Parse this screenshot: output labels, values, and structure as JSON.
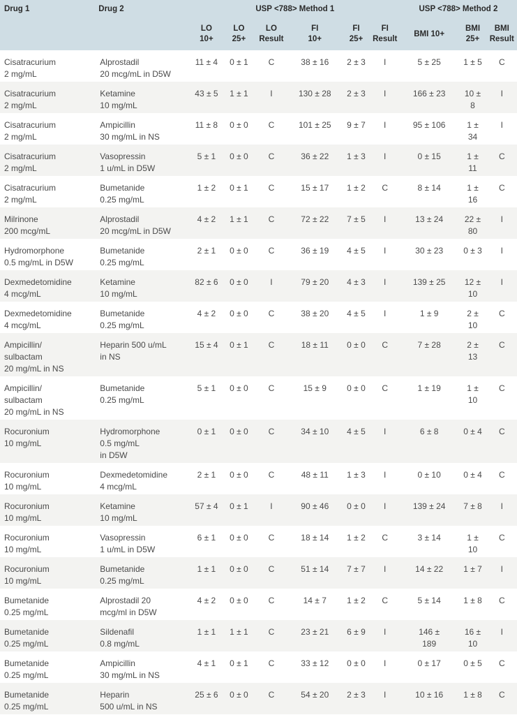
{
  "header": {
    "drug1": "Drug 1",
    "drug2": "Drug 2",
    "method1": "USP <788> Method 1",
    "method2": "USP <788> Method 2",
    "lo10": [
      "LO",
      "10+"
    ],
    "lo25": [
      "LO",
      "25+"
    ],
    "lo_result": [
      "LO",
      "Result"
    ],
    "fi10": [
      "FI",
      "10+"
    ],
    "fi25": [
      "FI",
      "25+"
    ],
    "fi_result": [
      "FI",
      "Result"
    ],
    "bmi10": [
      "BMI 10+"
    ],
    "bmi25": [
      "BMI",
      "25+"
    ],
    "bmi_result": [
      "BMI",
      "Result"
    ]
  },
  "rows": [
    {
      "d1": [
        "Cisatracurium",
        "2 mg/mL"
      ],
      "d2": [
        "Alprostadil",
        "20 mcg/mL in D5W"
      ],
      "lo10": [
        "11 ± 4"
      ],
      "lo25": [
        "0 ± 1"
      ],
      "lor": "C",
      "fi10": [
        "38 ± 16"
      ],
      "fi25": [
        "2 ± 3"
      ],
      "fir": "I",
      "bmi10": [
        "5 ± 25"
      ],
      "bmi25": [
        "1 ± 5"
      ],
      "bmir": "C"
    },
    {
      "d1": [
        "Cisatracurium",
        "2 mg/mL"
      ],
      "d2": [
        "Ketamine",
        "10 mg/mL"
      ],
      "lo10": [
        "43 ± 5"
      ],
      "lo25": [
        "1 ± 1"
      ],
      "lor": "I",
      "fi10": [
        "130 ± 28"
      ],
      "fi25": [
        "2 ± 3"
      ],
      "fir": "I",
      "bmi10": [
        "166 ± 23"
      ],
      "bmi25": [
        "10 ± 8"
      ],
      "bmir": "I"
    },
    {
      "d1": [
        "Cisatracurium",
        "2 mg/mL"
      ],
      "d2": [
        "Ampicillin",
        "30 mg/mL in NS"
      ],
      "lo10": [
        "11 ± 8"
      ],
      "lo25": [
        "0 ± 0"
      ],
      "lor": "C",
      "fi10": [
        "101 ± 25"
      ],
      "fi25": [
        "9 ± 7"
      ],
      "fir": "I",
      "bmi10": [
        "95 ± 106"
      ],
      "bmi25": [
        "1 ± 34"
      ],
      "bmir": "I"
    },
    {
      "d1": [
        "Cisatracurium",
        "2 mg/mL"
      ],
      "d2": [
        "Vasopressin",
        "1 u/mL in D5W"
      ],
      "lo10": [
        "5 ± 1"
      ],
      "lo25": [
        "0 ± 0"
      ],
      "lor": "C",
      "fi10": [
        "36 ± 22"
      ],
      "fi25": [
        "1 ± 3"
      ],
      "fir": "I",
      "bmi10": [
        "0 ± 15"
      ],
      "bmi25": [
        "1 ± 11"
      ],
      "bmir": "C"
    },
    {
      "d1": [
        "Cisatracurium",
        "2 mg/mL"
      ],
      "d2": [
        "Bumetanide",
        "0.25 mg/mL"
      ],
      "lo10": [
        "1 ± 2"
      ],
      "lo25": [
        "0 ± 1"
      ],
      "lor": "C",
      "fi10": [
        "15 ± 17"
      ],
      "fi25": [
        "1 ± 2"
      ],
      "fir": "C",
      "bmi10": [
        "8 ± 14"
      ],
      "bmi25": [
        "1 ± 16"
      ],
      "bmir": "C"
    },
    {
      "d1": [
        "Milrinone",
        "200 mcg/mL"
      ],
      "d2": [
        "Alprostadil",
        "20 mcg/mL in D5W"
      ],
      "lo10": [
        "4 ± 2"
      ],
      "lo25": [
        "1 ± 1"
      ],
      "lor": "C",
      "fi10": [
        "72 ± 22"
      ],
      "fi25": [
        "7 ± 5"
      ],
      "fir": "I",
      "bmi10": [
        "13 ± 24"
      ],
      "bmi25": [
        "22 ±",
        "80"
      ],
      "bmir": "I"
    },
    {
      "d1": [
        "Hydromorphone",
        "0.5 mg/mL in D5W"
      ],
      "d2": [
        "Bumetanide",
        "0.25 mg/mL"
      ],
      "lo10": [
        "2 ± 1"
      ],
      "lo25": [
        "0 ± 0"
      ],
      "lor": "C",
      "fi10": [
        "36 ± 19"
      ],
      "fi25": [
        "4 ± 5"
      ],
      "fir": "I",
      "bmi10": [
        "30 ± 23"
      ],
      "bmi25": [
        "0 ± 3"
      ],
      "bmir": "I"
    },
    {
      "d1": [
        "Dexmedetomidine",
        "4 mcg/mL"
      ],
      "d2": [
        "Ketamine",
        "10 mg/mL"
      ],
      "lo10": [
        "82 ± 6"
      ],
      "lo25": [
        "0 ± 0"
      ],
      "lor": "I",
      "fi10": [
        "79 ± 20"
      ],
      "fi25": [
        "4 ± 3"
      ],
      "fir": "I",
      "bmi10": [
        "139 ± 25"
      ],
      "bmi25": [
        "12 ± 10"
      ],
      "bmir": "I"
    },
    {
      "d1": [
        "Dexmedetomidine",
        "4 mcg/mL"
      ],
      "d2": [
        "Bumetanide",
        "0.25 mg/mL"
      ],
      "lo10": [
        "4 ± 2"
      ],
      "lo25": [
        "0 ± 0"
      ],
      "lor": "C",
      "fi10": [
        "38 ± 20"
      ],
      "fi25": [
        "4 ± 5"
      ],
      "fir": "I",
      "bmi10": [
        "1 ± 9"
      ],
      "bmi25": [
        "2 ± 10"
      ],
      "bmir": "C"
    },
    {
      "d1": [
        "Ampicillin/",
        "sulbactam",
        "20 mg/mL in NS"
      ],
      "d2": [
        "Heparin 500 u/mL",
        "in NS"
      ],
      "lo10": [
        "15 ± 4"
      ],
      "lo25": [
        "0 ± 1"
      ],
      "lor": "C",
      "fi10": [
        "18 ± 11"
      ],
      "fi25": [
        "0 ± 0"
      ],
      "fir": "C",
      "bmi10": [
        "7 ± 28"
      ],
      "bmi25": [
        "2 ± 13"
      ],
      "bmir": "C"
    },
    {
      "d1": [
        "Ampicillin/",
        "sulbactam",
        "20 mg/mL in NS"
      ],
      "d2": [
        "Bumetanide",
        "0.25 mg/mL"
      ],
      "lo10": [
        "5 ± 1"
      ],
      "lo25": [
        "0 ± 0"
      ],
      "lor": "C",
      "fi10": [
        "15 ± 9"
      ],
      "fi25": [
        "0 ± 0"
      ],
      "fir": "C",
      "bmi10": [
        "1 ± 19"
      ],
      "bmi25": [
        "1 ± 10"
      ],
      "bmir": "C"
    },
    {
      "d1": [
        "Rocuronium",
        "10 mg/mL"
      ],
      "d2": [
        "Hydromorphone",
        "0.5 mg/mL",
        "in D5W"
      ],
      "lo10": [
        "0 ± 1"
      ],
      "lo25": [
        "0 ± 0"
      ],
      "lor": "C",
      "fi10": [
        "34 ± 10"
      ],
      "fi25": [
        "4 ± 5"
      ],
      "fir": "I",
      "bmi10": [
        "6 ± 8"
      ],
      "bmi25": [
        "0 ± 4"
      ],
      "bmir": "C"
    },
    {
      "d1": [
        "Rocuronium",
        "10 mg/mL"
      ],
      "d2": [
        "Dexmedetomidine",
        "4 mcg/mL"
      ],
      "lo10": [
        "2 ± 1"
      ],
      "lo25": [
        "0 ± 0"
      ],
      "lor": "C",
      "fi10": [
        "48 ± 11"
      ],
      "fi25": [
        "1 ± 3"
      ],
      "fir": "I",
      "bmi10": [
        "0 ± 10"
      ],
      "bmi25": [
        "0 ± 4"
      ],
      "bmir": "C"
    },
    {
      "d1": [
        "Rocuronium",
        "10 mg/mL"
      ],
      "d2": [
        "Ketamine",
        "10 mg/mL"
      ],
      "lo10": [
        "57 ± 4"
      ],
      "lo25": [
        "0 ± 1"
      ],
      "lor": "I",
      "fi10": [
        "90 ± 46"
      ],
      "fi25": [
        "0 ± 0"
      ],
      "fir": "I",
      "bmi10": [
        "139 ± 24"
      ],
      "bmi25": [
        "7 ± 8"
      ],
      "bmir": "I"
    },
    {
      "d1": [
        "Rocuronium",
        "10 mg/mL"
      ],
      "d2": [
        "Vasopressin",
        "1 u/mL in D5W"
      ],
      "lo10": [
        "6 ± 1"
      ],
      "lo25": [
        "0 ± 0"
      ],
      "lor": "C",
      "fi10": [
        "18 ± 14"
      ],
      "fi25": [
        "1 ± 2"
      ],
      "fir": "C",
      "bmi10": [
        "3 ± 14"
      ],
      "bmi25": [
        "1 ± 10"
      ],
      "bmir": "C"
    },
    {
      "d1": [
        "Rocuronium",
        "10 mg/mL"
      ],
      "d2": [
        "Bumetanide",
        "0.25 mg/mL"
      ],
      "lo10": [
        "1 ± 1"
      ],
      "lo25": [
        "0 ± 0"
      ],
      "lor": "C",
      "fi10": [
        "51 ± 14"
      ],
      "fi25": [
        "7 ± 7"
      ],
      "fir": "I",
      "bmi10": [
        "14 ± 22"
      ],
      "bmi25": [
        "1 ± 7"
      ],
      "bmir": "I"
    },
    {
      "d1": [
        "Bumetanide",
        "0.25 mg/mL"
      ],
      "d2": [
        "Alprostadil 20",
        "mcg/ml in D5W"
      ],
      "lo10": [
        "4 ± 2"
      ],
      "lo25": [
        "0 ± 0"
      ],
      "lor": "C",
      "fi10": [
        "14 ± 7"
      ],
      "fi25": [
        "1 ± 2"
      ],
      "fir": "C",
      "bmi10": [
        "5 ± 14"
      ],
      "bmi25": [
        "1 ± 8"
      ],
      "bmir": "C"
    },
    {
      "d1": [
        "Bumetanide",
        "0.25 mg/mL"
      ],
      "d2": [
        "Sildenafil",
        "0.8 mg/mL"
      ],
      "lo10": [
        "1 ± 1"
      ],
      "lo25": [
        "1 ± 1"
      ],
      "lor": "C",
      "fi10": [
        "23 ± 21"
      ],
      "fi25": [
        "6 ± 9"
      ],
      "fir": "I",
      "bmi10": [
        "146 ±",
        "189"
      ],
      "bmi25": [
        "16 ± 10"
      ],
      "bmir": "I"
    },
    {
      "d1": [
        "Bumetanide",
        "0.25 mg/mL"
      ],
      "d2": [
        "Ampicillin",
        "30 mg/mL in NS"
      ],
      "lo10": [
        "4 ± 1"
      ],
      "lo25": [
        "0 ± 1"
      ],
      "lor": "C",
      "fi10": [
        "33 ± 12"
      ],
      "fi25": [
        "0 ± 0"
      ],
      "fir": "I",
      "bmi10": [
        "0 ± 17"
      ],
      "bmi25": [
        "0 ± 5"
      ],
      "bmir": "C"
    },
    {
      "d1": [
        "Bumetanide",
        "0.25 mg/mL"
      ],
      "d2": [
        "Heparin",
        "500 u/mL in NS"
      ],
      "lo10": [
        "25 ± 6"
      ],
      "lo25": [
        "0 ± 0"
      ],
      "lor": "C",
      "fi10": [
        "54 ± 20"
      ],
      "fi25": [
        "2 ± 3"
      ],
      "fir": "I",
      "bmi10": [
        "10 ± 16"
      ],
      "bmi25": [
        "1 ± 8"
      ],
      "bmir": "C"
    }
  ]
}
